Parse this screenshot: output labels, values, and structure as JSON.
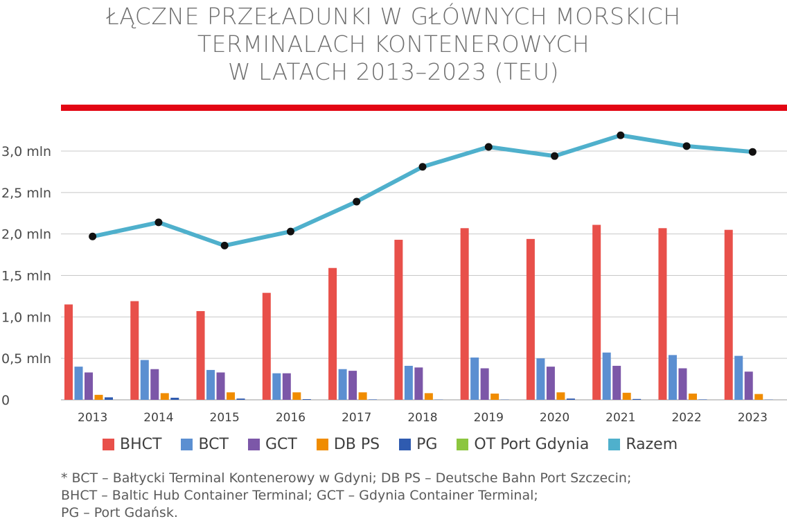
{
  "title": {
    "line1": "ŁĄCZNE PRZEŁADUNKI W GŁÓWNYCH MORSKICH",
    "line2": "TERMINALACH KONTENEROWYCH",
    "line3": "W LATACH 2013–2023 (TEU)"
  },
  "colors": {
    "accent_bar": "#e30613"
  },
  "chart_data": {
    "type": "bar",
    "categories": [
      "2013",
      "2014",
      "2015",
      "2016",
      "2017",
      "2018",
      "2019",
      "2020",
      "2021",
      "2022",
      "2023"
    ],
    "ylim": [
      0,
      3500000
    ],
    "yticks": [
      {
        "value": 0,
        "label": "0"
      },
      {
        "value": 500000,
        "label": "0,5 mln"
      },
      {
        "value": 1000000,
        "label": "1,0 mln"
      },
      {
        "value": 1500000,
        "label": "1,5 mln"
      },
      {
        "value": 2000000,
        "label": "2,0 mln"
      },
      {
        "value": 2500000,
        "label": "2,5 mln"
      },
      {
        "value": 3000000,
        "label": "3,0 mln"
      }
    ],
    "grid": true,
    "legend_position": "bottom",
    "series": [
      {
        "name": "BHCT",
        "kind": "bar",
        "color": "#e8504a",
        "values": [
          1150000,
          1190000,
          1070000,
          1290000,
          1590000,
          1930000,
          2070000,
          1940000,
          2110000,
          2070000,
          2050000
        ]
      },
      {
        "name": "BCT",
        "kind": "bar",
        "color": "#5b8fd1",
        "values": [
          400000,
          480000,
          360000,
          320000,
          370000,
          410000,
          510000,
          500000,
          570000,
          540000,
          530000
        ]
      },
      {
        "name": "GCT",
        "kind": "bar",
        "color": "#7c57a8",
        "values": [
          330000,
          370000,
          330000,
          320000,
          350000,
          390000,
          380000,
          400000,
          410000,
          380000,
          340000
        ]
      },
      {
        "name": "DB PS",
        "kind": "bar",
        "color": "#f08c00",
        "values": [
          60000,
          80000,
          90000,
          90000,
          90000,
          80000,
          75000,
          90000,
          85000,
          75000,
          70000
        ]
      },
      {
        "name": "PG",
        "kind": "bar",
        "color": "#2f5bb0",
        "values": [
          30000,
          25000,
          15000,
          8000,
          5000,
          3000,
          3000,
          15000,
          10000,
          5000,
          3000
        ]
      },
      {
        "name": "OT Port Gdynia",
        "kind": "bar",
        "color": "#8cc63f",
        "values": [
          0,
          0,
          0,
          0,
          0,
          0,
          0,
          0,
          0,
          0,
          0
        ]
      },
      {
        "name": "Razem",
        "kind": "line",
        "color": "#4fb0cc",
        "values": [
          1970000,
          2140000,
          1860000,
          2030000,
          2390000,
          2810000,
          3050000,
          2940000,
          3190000,
          3060000,
          2990000
        ]
      }
    ]
  },
  "footnote": {
    "line1": "* BCT – Bałtycki Terminal Kontenerowy w Gdyni; DB PS – Deutsche Bahn Port Szczecin;",
    "line2": "BHCT – Baltic Hub Container Terminal; GCT – Gdynia Container Terminal;",
    "line3": "PG – Port Gdańsk."
  }
}
